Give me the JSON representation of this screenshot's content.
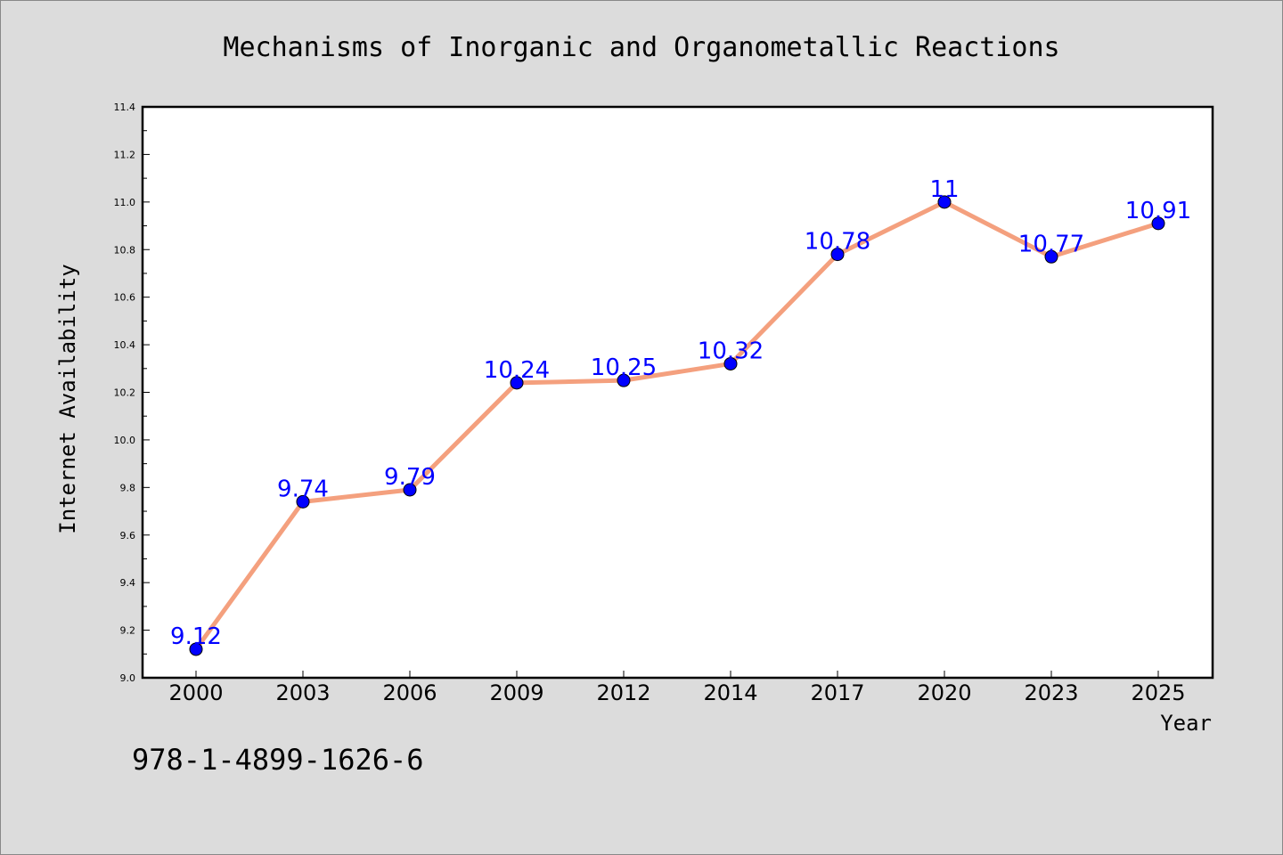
{
  "chart_data": {
    "type": "line",
    "title": "Mechanisms of Inorganic and Organometallic Reactions",
    "xlabel": "Year",
    "ylabel": "Internet Availability",
    "categories": [
      "2000",
      "2003",
      "2006",
      "2009",
      "2012",
      "2014",
      "2017",
      "2020",
      "2023",
      "2025"
    ],
    "series": [
      {
        "values": [
          9.12,
          9.74,
          9.79,
          10.24,
          10.25,
          10.32,
          10.78,
          11.0,
          10.77,
          10.91
        ],
        "data_labels": [
          "9.12",
          "9.74",
          "9.79",
          "10.24",
          "10.25",
          "10.32",
          "10.78",
          "11",
          "10.77",
          "10.91"
        ],
        "line_color": "#f4a07e",
        "marker_color": "#0000ff",
        "label_color": "#0000ff"
      }
    ],
    "ylim": [
      9.0,
      11.4
    ],
    "yticks": [
      "9.0",
      "9.2",
      "9.4",
      "9.6",
      "9.8",
      "10.0",
      "10.2",
      "10.4",
      "10.6",
      "10.8",
      "11.0",
      "11.2",
      "11.4"
    ],
    "grid": false,
    "legend": "none"
  },
  "annotation": "978-1-4899-1626-6",
  "colors": {
    "background": "#dcdcdc",
    "plot_background": "#ffffff"
  }
}
